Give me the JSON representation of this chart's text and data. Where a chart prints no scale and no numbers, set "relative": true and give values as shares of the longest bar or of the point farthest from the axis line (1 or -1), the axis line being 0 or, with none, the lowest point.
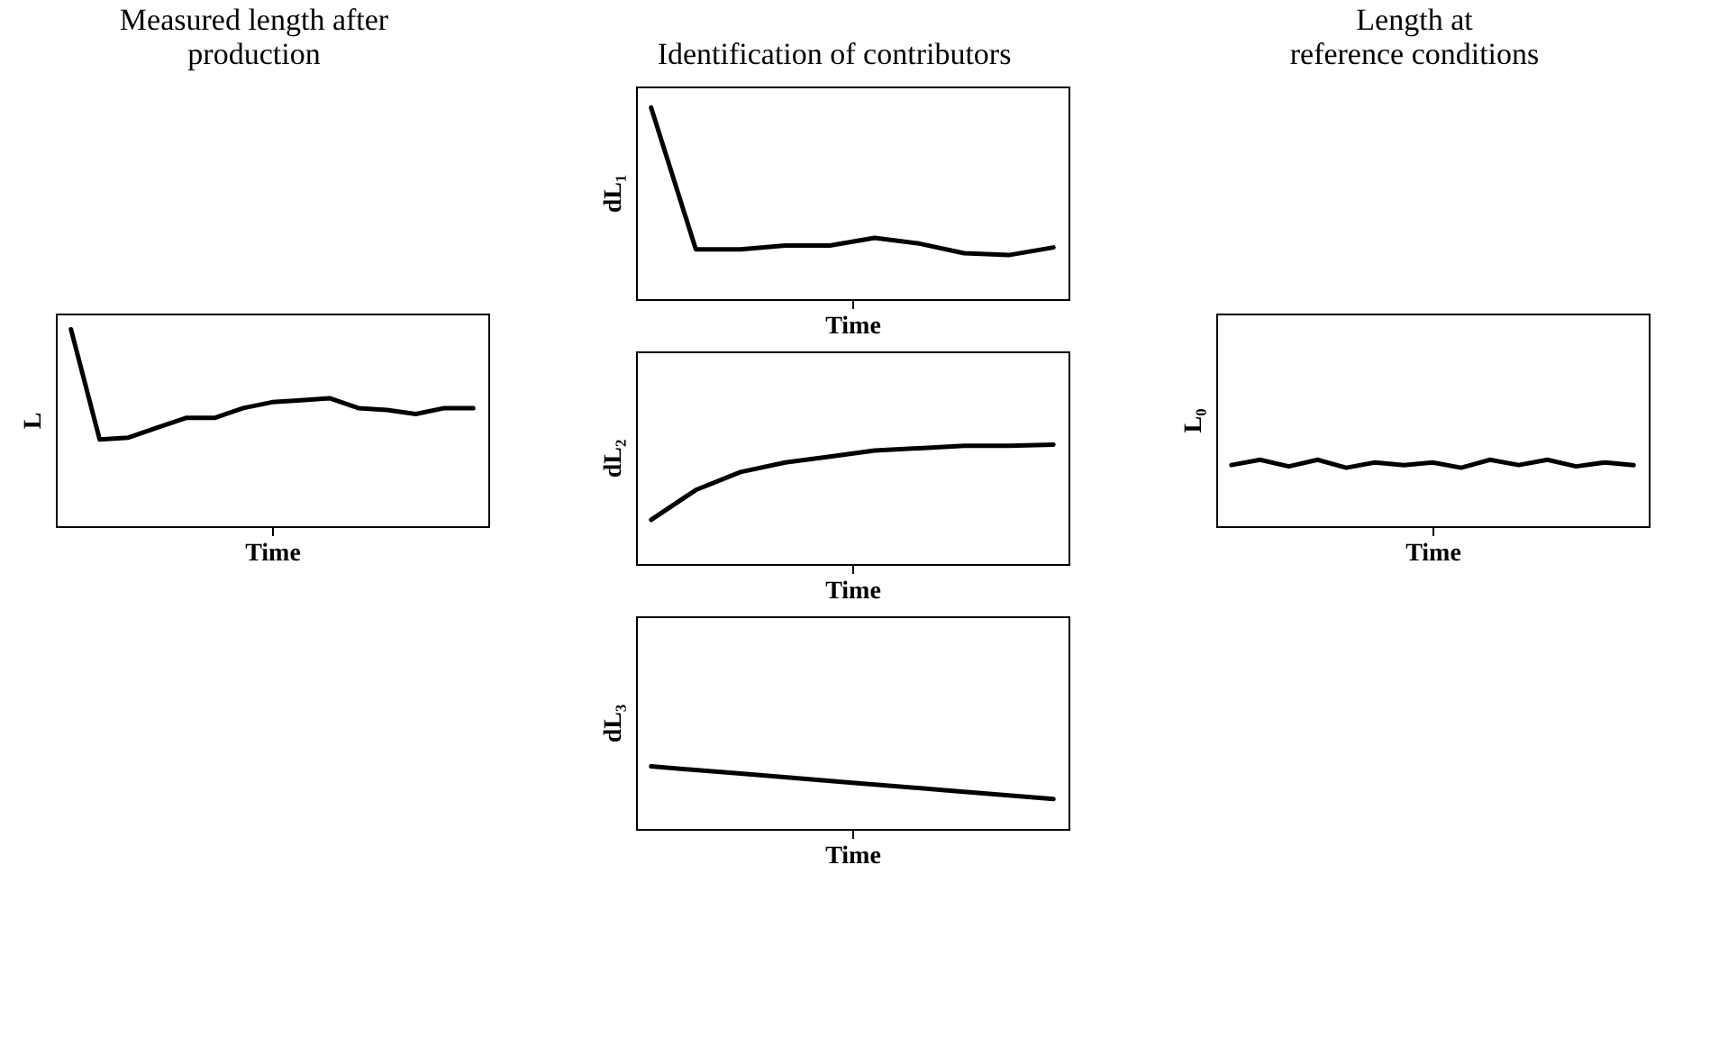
{
  "chart_data": [
    {
      "type": "line",
      "title": "Measured length after\nproduction",
      "xlabel": "Time",
      "ylabel": "L",
      "relative": true,
      "categories": [
        null,
        null,
        null,
        null,
        null,
        null,
        null,
        null,
        null,
        null,
        null,
        null,
        null,
        null,
        null
      ],
      "series": [
        {
          "color": "#000000",
          "values": [
            1,
            0.44,
            0.45,
            0.5,
            0.55,
            0.55,
            0.6,
            0.63,
            0.64,
            0.65,
            0.6,
            0.59,
            0.57,
            0.6,
            0.6
          ]
        }
      ]
    },
    {
      "type": "line",
      "title": "Identification of contributors",
      "xlabel": "Time",
      "ylabel": "dL₁",
      "relative": true,
      "categories": [
        null,
        null,
        null,
        null,
        null,
        null,
        null,
        null,
        null,
        null
      ],
      "series": [
        {
          "color": "#000000",
          "values": [
            1,
            0.26,
            0.26,
            0.28,
            0.28,
            0.32,
            0.29,
            0.24,
            0.23,
            0.27
          ]
        }
      ]
    },
    {
      "type": "line",
      "xlabel": "Time",
      "ylabel": "dL₂",
      "relative": true,
      "categories": [
        null,
        null,
        null,
        null,
        null,
        null,
        null,
        null,
        null,
        null
      ],
      "series": [
        {
          "color": "#000000",
          "values": [
            0.37,
            0.62,
            0.77,
            0.85,
            0.9,
            0.95,
            0.97,
            0.99,
            0.99,
            1
          ]
        }
      ]
    },
    {
      "type": "line",
      "title": "Length at\nreference conditions",
      "xlabel": "Time",
      "ylabel": "L₀",
      "relative": true,
      "categories": [
        null,
        null,
        null,
        null,
        null,
        null,
        null,
        null,
        null,
        null,
        null,
        null,
        null,
        null,
        null
      ],
      "series": [
        {
          "color": "#000000",
          "values": [
            0.92,
            1,
            0.9,
            1,
            0.88,
            0.96,
            0.92,
            0.96,
            0.88,
            1,
            0.92,
            1,
            0.9,
            0.96,
            0.92
          ]
        }
      ]
    },
    {
      "type": "line",
      "xlabel": "Time",
      "ylabel": "dL₃",
      "relative": true,
      "categories": [
        null,
        null,
        null,
        null,
        null
      ],
      "series": [
        {
          "color": "#000000",
          "values": [
            1,
            0.87,
            0.74,
            0.61,
            0.48
          ]
        }
      ]
    }
  ]
}
